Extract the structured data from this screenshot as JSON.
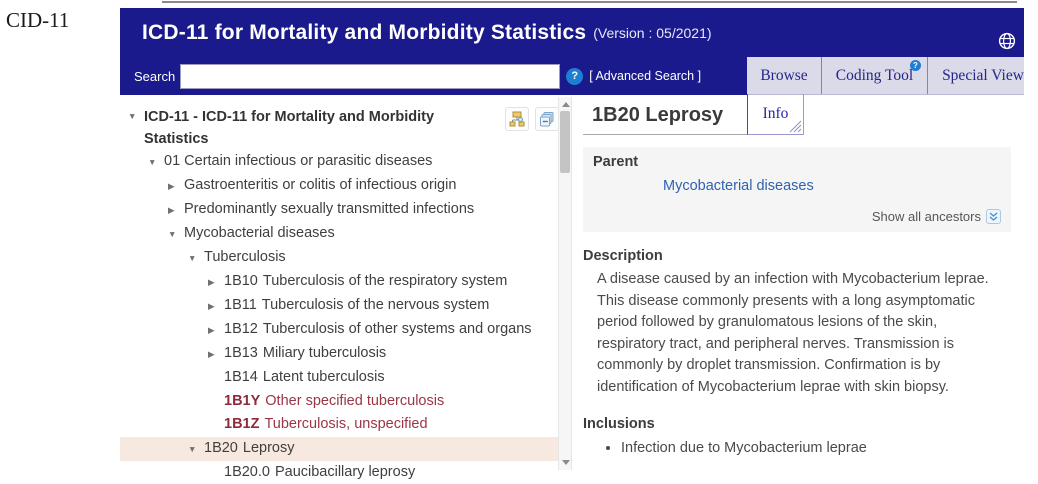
{
  "page": {
    "annotation": "CID-11"
  },
  "header": {
    "title": "ICD-11 for Mortality and Morbidity Statistics",
    "version": "(Version : 05/2021)",
    "search_label": "Search",
    "search_value": "",
    "help_icon": "?",
    "advanced_search": "[ Advanced Search ]",
    "tabs": [
      {
        "label": "Browse",
        "badge": ""
      },
      {
        "label": "Coding Tool",
        "badge": "?"
      },
      {
        "label": "Special View",
        "badge": ""
      }
    ]
  },
  "tree": {
    "items": [
      {
        "code": "",
        "label": "ICD-11 - ICD-11 for Mortality and Morbidity Statistics",
        "level": 0,
        "state": "expanded",
        "bold": true,
        "variant": "normal",
        "highlight": false
      },
      {
        "code": "",
        "label": "01 Certain infectious or parasitic diseases",
        "level": 1,
        "state": "expanded",
        "bold": false,
        "variant": "normal",
        "highlight": false
      },
      {
        "code": "",
        "label": "Gastroenteritis or colitis of infectious origin",
        "level": 2,
        "state": "collapsed",
        "bold": false,
        "variant": "normal",
        "highlight": false
      },
      {
        "code": "",
        "label": "Predominantly sexually transmitted infections",
        "level": 2,
        "state": "collapsed",
        "bold": false,
        "variant": "normal",
        "highlight": false
      },
      {
        "code": "",
        "label": "Mycobacterial diseases",
        "level": 2,
        "state": "expanded",
        "bold": false,
        "variant": "normal",
        "highlight": false
      },
      {
        "code": "",
        "label": "Tuberculosis",
        "level": 3,
        "state": "expanded",
        "bold": false,
        "variant": "normal",
        "highlight": false
      },
      {
        "code": "1B10",
        "label": "Tuberculosis of the respiratory system",
        "level": 4,
        "state": "collapsed",
        "bold": false,
        "variant": "normal",
        "highlight": false
      },
      {
        "code": "1B11",
        "label": "Tuberculosis of the nervous system",
        "level": 4,
        "state": "collapsed",
        "bold": false,
        "variant": "normal",
        "highlight": false
      },
      {
        "code": "1B12",
        "label": "Tuberculosis of other systems and organs",
        "level": 4,
        "state": "collapsed",
        "bold": false,
        "variant": "normal",
        "highlight": false
      },
      {
        "code": "1B13",
        "label": "Miliary tuberculosis",
        "level": 4,
        "state": "collapsed",
        "bold": false,
        "variant": "normal",
        "highlight": false
      },
      {
        "code": "1B14",
        "label": "Latent tuberculosis",
        "level": 4,
        "state": "leaf",
        "bold": false,
        "variant": "normal",
        "highlight": false
      },
      {
        "code": "1B1Y",
        "label": "Other specified tuberculosis",
        "level": 4,
        "state": "leaf",
        "bold": false,
        "variant": "maroon",
        "highlight": false
      },
      {
        "code": "1B1Z",
        "label": "Tuberculosis, unspecified",
        "level": 4,
        "state": "leaf",
        "bold": false,
        "variant": "maroon",
        "highlight": false
      },
      {
        "code": "1B20",
        "label": "Leprosy",
        "level": 3,
        "state": "expanded",
        "bold": false,
        "variant": "normal",
        "highlight": true
      },
      {
        "code": "1B20.0",
        "label": "Paucibacillary leprosy",
        "level": 4,
        "state": "leaf",
        "bold": false,
        "variant": "normal",
        "highlight": false
      }
    ]
  },
  "detail": {
    "code_title": "1B20 Leprosy",
    "tab": "Info",
    "parent": {
      "heading": "Parent",
      "link": "Mycobacterial diseases",
      "show_all": "Show all ancestors"
    },
    "description": {
      "heading": "Description",
      "text": "A disease caused by an infection with Mycobacterium leprae. This disease commonly presents with a long asymptomatic period followed by granulomatous lesions of the skin, respiratory tract, and peripheral nerves. Transmission is commonly by droplet transmission. Confirmation is by identification of Mycobacterium leprae with skin biopsy."
    },
    "inclusions": {
      "heading": "Inclusions",
      "items": [
        "Infection due to Mycobacterium leprae"
      ]
    }
  },
  "colors": {
    "header_navy": "#1a1a8c",
    "tab_bg": "#dadae9",
    "tab_text": "#26268a",
    "maroon_code": "#8d2b3b",
    "link_blue": "#2f62ad",
    "highlight_row": "#f7e9e0",
    "help_badge_blue": "#1d7fd4"
  }
}
